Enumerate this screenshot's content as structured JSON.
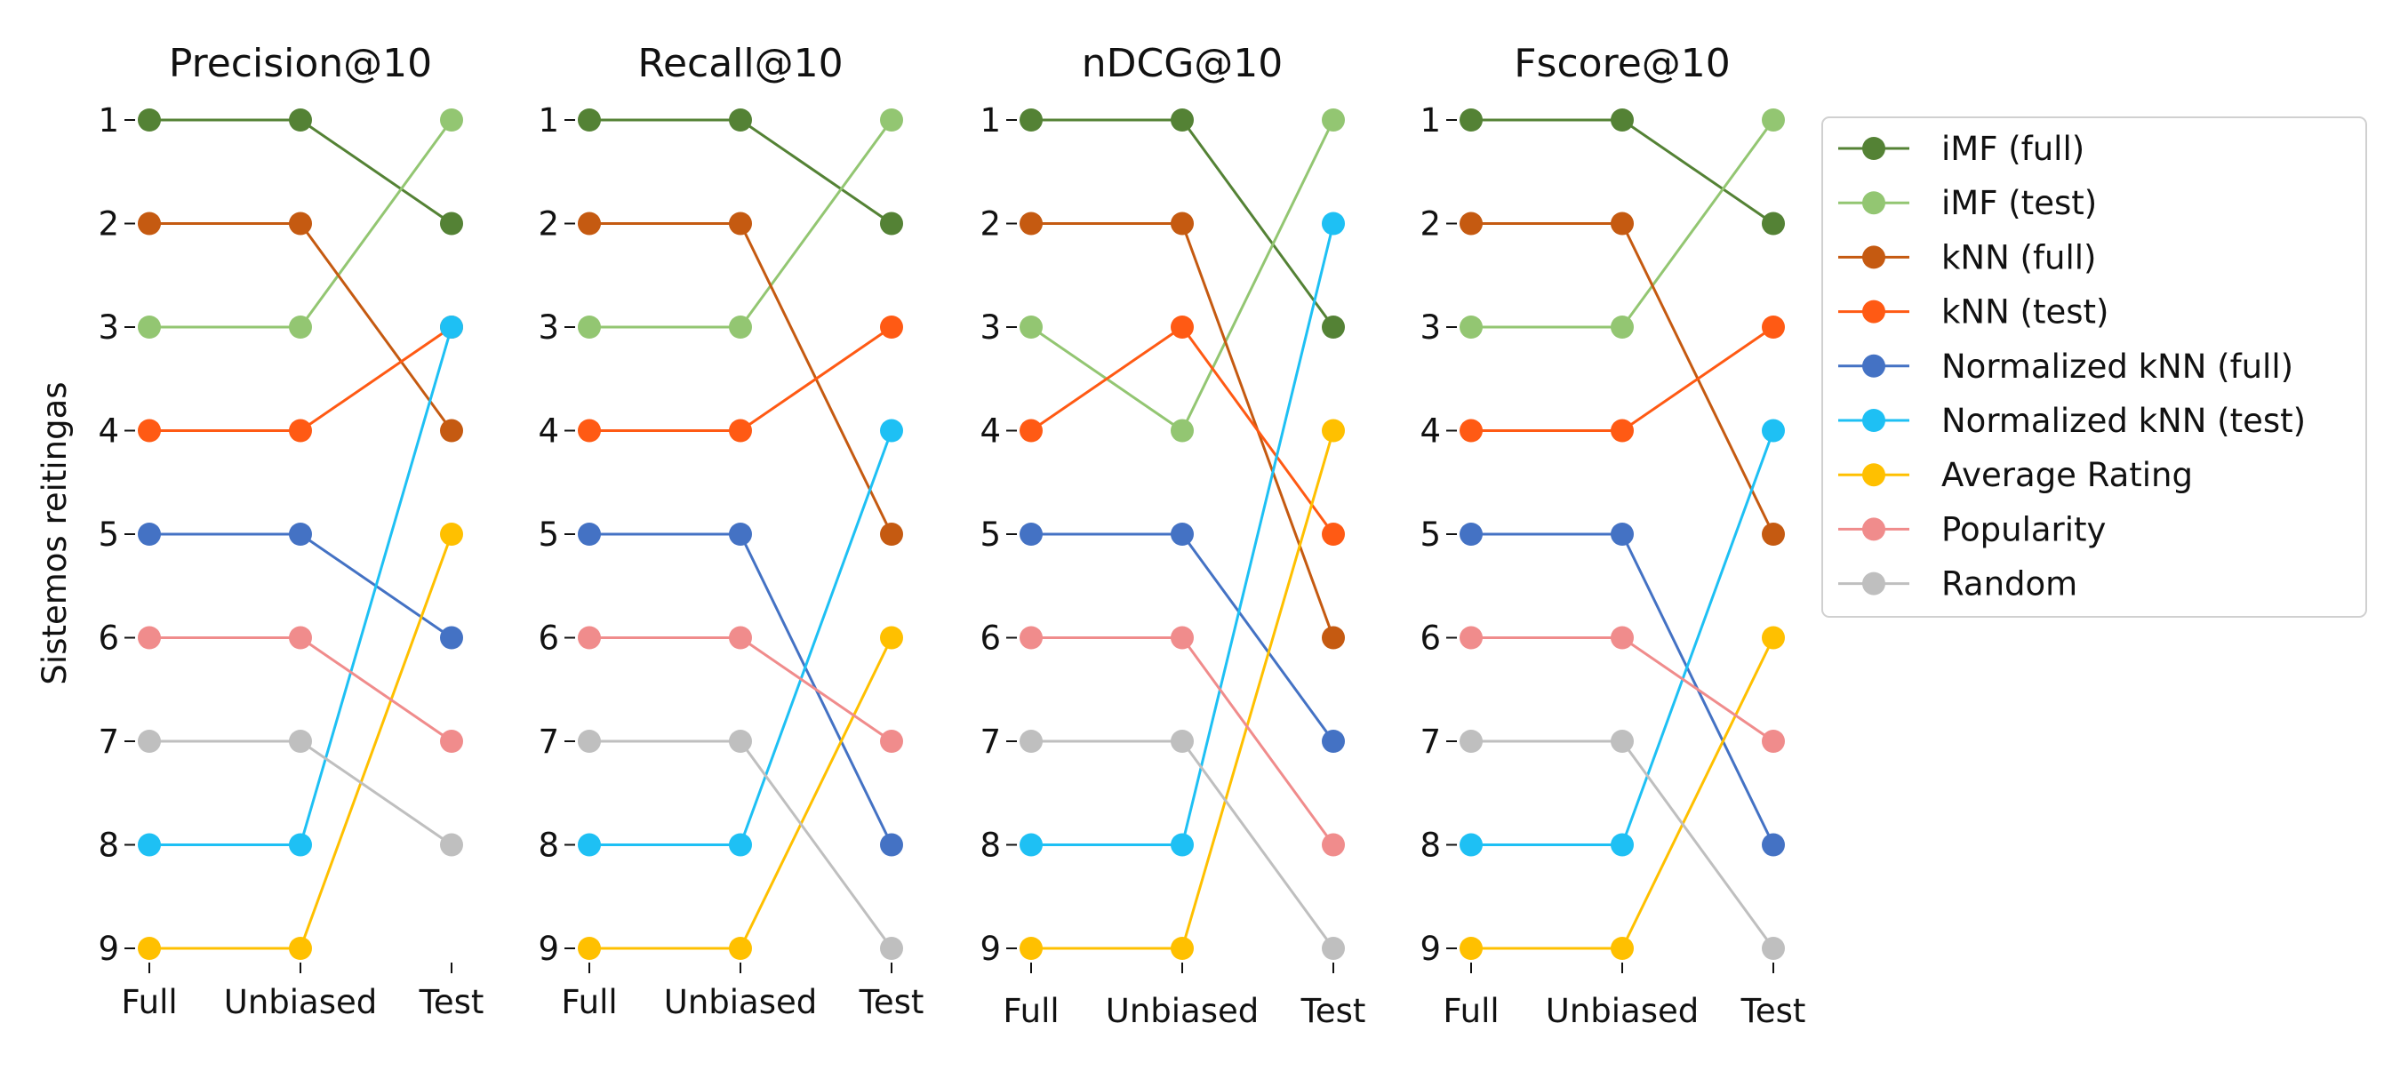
{
  "y_axis_label": "Sistemos reitingas",
  "colors": {
    "iMF (full)": "#548235",
    "iMF (test)": "#93c672",
    "kNN (full)": "#c55a11",
    "kNN (test)": "#ff5a14",
    "Normalized kNN (full)": "#4472c4",
    "Normalized kNN (test)": "#1ec0f4",
    "Average Rating": "#ffc000",
    "Popularity": "#f08c8c",
    "Random": "#bfbfbf"
  },
  "legend": {
    "placement": "right",
    "entries": [
      "iMF (full)",
      "iMF (test)",
      "kNN (full)",
      "kNN (test)",
      "Normalized kNN (full)",
      "Normalized kNN (test)",
      "Average Rating",
      "Popularity",
      "Random"
    ]
  },
  "chart_data": [
    {
      "type": "line",
      "title": "Precision@10",
      "categories": [
        "Full",
        "Unbiased",
        "Test"
      ],
      "y_ticks": [
        1,
        2,
        3,
        4,
        5,
        6,
        7,
        8,
        9
      ],
      "ylim": [
        9,
        1
      ],
      "grid": false,
      "series": [
        {
          "name": "iMF (full)",
          "values": [
            1,
            1,
            2
          ]
        },
        {
          "name": "iMF (test)",
          "values": [
            3,
            3,
            1
          ]
        },
        {
          "name": "kNN (full)",
          "values": [
            2,
            2,
            4
          ]
        },
        {
          "name": "kNN (test)",
          "values": [
            4,
            4,
            3
          ]
        },
        {
          "name": "Normalized kNN (full)",
          "values": [
            5,
            5,
            6
          ]
        },
        {
          "name": "Normalized kNN (test)",
          "values": [
            8,
            8,
            3
          ]
        },
        {
          "name": "Average Rating",
          "values": [
            9,
            9,
            5
          ]
        },
        {
          "name": "Popularity",
          "values": [
            6,
            6,
            7
          ]
        },
        {
          "name": "Random",
          "values": [
            7,
            7,
            8
          ]
        }
      ]
    },
    {
      "type": "line",
      "title": "Recall@10",
      "categories": [
        "Full",
        "Unbiased",
        "Test"
      ],
      "y_ticks": [
        1,
        2,
        3,
        4,
        5,
        6,
        7,
        8,
        9
      ],
      "ylim": [
        9,
        1
      ],
      "grid": false,
      "series": [
        {
          "name": "iMF (full)",
          "values": [
            1,
            1,
            2
          ]
        },
        {
          "name": "iMF (test)",
          "values": [
            3,
            3,
            1
          ]
        },
        {
          "name": "kNN (full)",
          "values": [
            2,
            2,
            5
          ]
        },
        {
          "name": "kNN (test)",
          "values": [
            4,
            4,
            3
          ]
        },
        {
          "name": "Normalized kNN (full)",
          "values": [
            5,
            5,
            8
          ]
        },
        {
          "name": "Normalized kNN (test)",
          "values": [
            8,
            8,
            4
          ]
        },
        {
          "name": "Average Rating",
          "values": [
            9,
            9,
            6
          ]
        },
        {
          "name": "Popularity",
          "values": [
            6,
            6,
            7
          ]
        },
        {
          "name": "Random",
          "values": [
            7,
            7,
            9
          ]
        }
      ]
    },
    {
      "type": "line",
      "title": "nDCG@10",
      "categories": [
        "Full",
        "Unbiased",
        "Test"
      ],
      "y_ticks": [
        1,
        2,
        3,
        4,
        5,
        6,
        7,
        8,
        9
      ],
      "ylim": [
        9,
        1
      ],
      "grid": false,
      "series": [
        {
          "name": "iMF (full)",
          "values": [
            1,
            1,
            3
          ]
        },
        {
          "name": "iMF (test)",
          "values": [
            3,
            4,
            1
          ]
        },
        {
          "name": "kNN (full)",
          "values": [
            2,
            2,
            6
          ]
        },
        {
          "name": "kNN (test)",
          "values": [
            4,
            3,
            5
          ]
        },
        {
          "name": "Normalized kNN (full)",
          "values": [
            5,
            5,
            7
          ]
        },
        {
          "name": "Normalized kNN (test)",
          "values": [
            8,
            8,
            2
          ]
        },
        {
          "name": "Average Rating",
          "values": [
            9,
            9,
            4
          ]
        },
        {
          "name": "Popularity",
          "values": [
            6,
            6,
            8
          ]
        },
        {
          "name": "Random",
          "values": [
            7,
            7,
            9
          ]
        }
      ]
    },
    {
      "type": "line",
      "title": "Fscore@10",
      "categories": [
        "Full",
        "Unbiased",
        "Test"
      ],
      "y_ticks": [
        1,
        2,
        3,
        4,
        5,
        6,
        7,
        8,
        9
      ],
      "ylim": [
        9,
        1
      ],
      "grid": false,
      "series": [
        {
          "name": "iMF (full)",
          "values": [
            1,
            1,
            2
          ]
        },
        {
          "name": "iMF (test)",
          "values": [
            3,
            3,
            1
          ]
        },
        {
          "name": "kNN (full)",
          "values": [
            2,
            2,
            5
          ]
        },
        {
          "name": "kNN (test)",
          "values": [
            4,
            4,
            3
          ]
        },
        {
          "name": "Normalized kNN (full)",
          "values": [
            5,
            5,
            8
          ]
        },
        {
          "name": "Normalized kNN (test)",
          "values": [
            8,
            8,
            4
          ]
        },
        {
          "name": "Average Rating",
          "values": [
            9,
            9,
            6
          ]
        },
        {
          "name": "Popularity",
          "values": [
            6,
            6,
            7
          ]
        },
        {
          "name": "Random",
          "values": [
            7,
            7,
            9
          ]
        }
      ]
    }
  ]
}
